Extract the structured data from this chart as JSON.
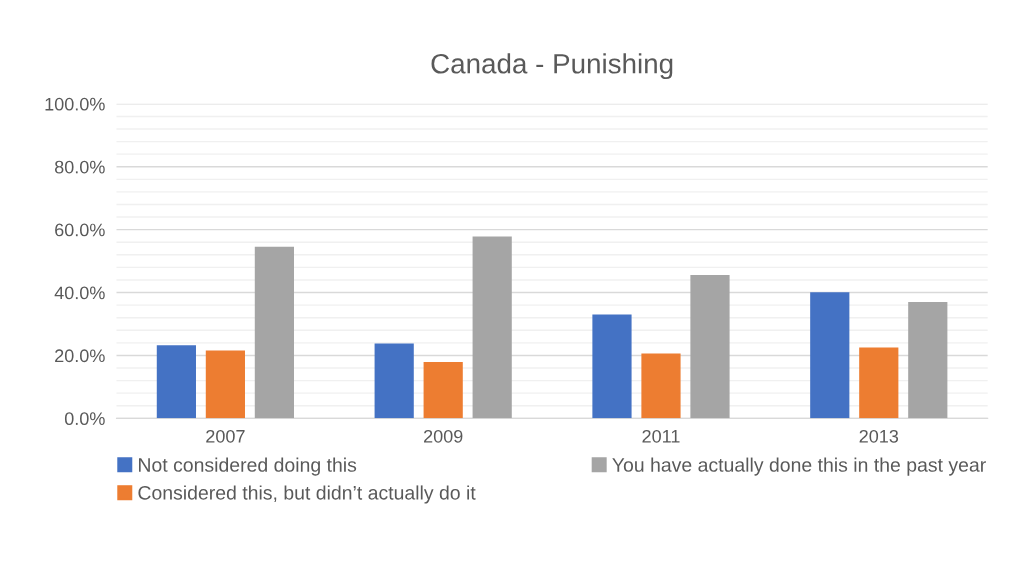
{
  "chart_data": {
    "type": "bar",
    "title": "Canada - Punishing",
    "categories": [
      "2007",
      "2009",
      "2011",
      "2013"
    ],
    "series": [
      {
        "name": "Not considered doing this",
        "color": "#4472c4",
        "values": [
          23.2,
          23.8,
          33.0,
          40.1
        ]
      },
      {
        "name": "Considered this, but didn’t actually do it",
        "color": "#ed7d31",
        "values": [
          21.6,
          17.9,
          20.6,
          22.5
        ]
      },
      {
        "name": "You have actually done this in the past year",
        "color": "#a5a5a5",
        "values": [
          54.6,
          57.8,
          45.6,
          37.0
        ]
      }
    ],
    "ylim": [
      0,
      100
    ],
    "yticks": [
      {
        "value": 0,
        "label": "0.0%"
      },
      {
        "value": 4,
        "label": null
      },
      {
        "value": 8,
        "label": null
      },
      {
        "value": 12,
        "label": null
      },
      {
        "value": 16,
        "label": null
      },
      {
        "value": 20,
        "label": "20.0%"
      },
      {
        "value": 24,
        "label": null
      },
      {
        "value": 28,
        "label": null
      },
      {
        "value": 32,
        "label": null
      },
      {
        "value": 36,
        "label": null
      },
      {
        "value": 40,
        "label": "40.0%"
      },
      {
        "value": 44,
        "label": null
      },
      {
        "value": 48,
        "label": null
      },
      {
        "value": 52,
        "label": null
      },
      {
        "value": 56,
        "label": null
      },
      {
        "value": 60,
        "label": "60.0%"
      },
      {
        "value": 64,
        "label": null
      },
      {
        "value": 68,
        "label": null
      },
      {
        "value": 72,
        "label": null
      },
      {
        "value": 76,
        "label": null
      },
      {
        "value": 80,
        "label": "80.0%"
      },
      {
        "value": 84,
        "label": null
      },
      {
        "value": 88,
        "label": null
      },
      {
        "value": 92,
        "label": null
      },
      {
        "value": 96,
        "label": null
      },
      {
        "value": 100,
        "label": "100.0%"
      }
    ],
    "grid": "y",
    "legend": "bottom"
  }
}
